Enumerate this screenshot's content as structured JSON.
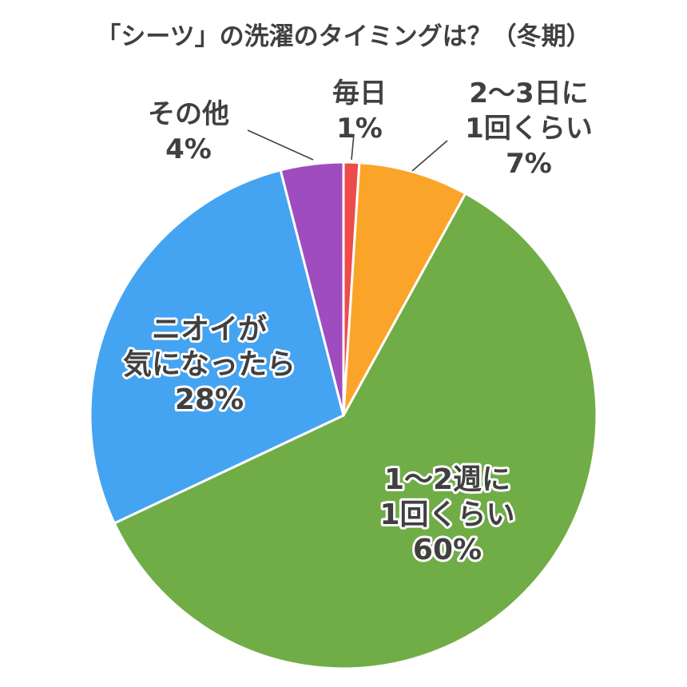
{
  "chart_data": {
    "type": "pie",
    "title": "「シーツ」の洗濯のタイミングは？（冬期）",
    "start_angle_deg": 0,
    "direction": "clockwise",
    "slices": [
      {
        "label_lines": [
          "毎日"
        ],
        "value": 1,
        "value_label": "1%",
        "color": "#ee4b4b"
      },
      {
        "label_lines": [
          "2～3日に",
          "1回くらい"
        ],
        "value": 7,
        "value_label": "7%",
        "color": "#faa52a"
      },
      {
        "label_lines": [
          "1～2週に",
          "1回くらい"
        ],
        "value": 60,
        "value_label": "60%",
        "color": "#71ad47"
      },
      {
        "label_lines": [
          "ニオイが",
          "気になったら"
        ],
        "value": 28,
        "value_label": "28%",
        "color": "#44a4f2"
      },
      {
        "label_lines": [
          "その他"
        ],
        "value": 4,
        "value_label": "4%",
        "color": "#9f4cbf"
      }
    ]
  }
}
